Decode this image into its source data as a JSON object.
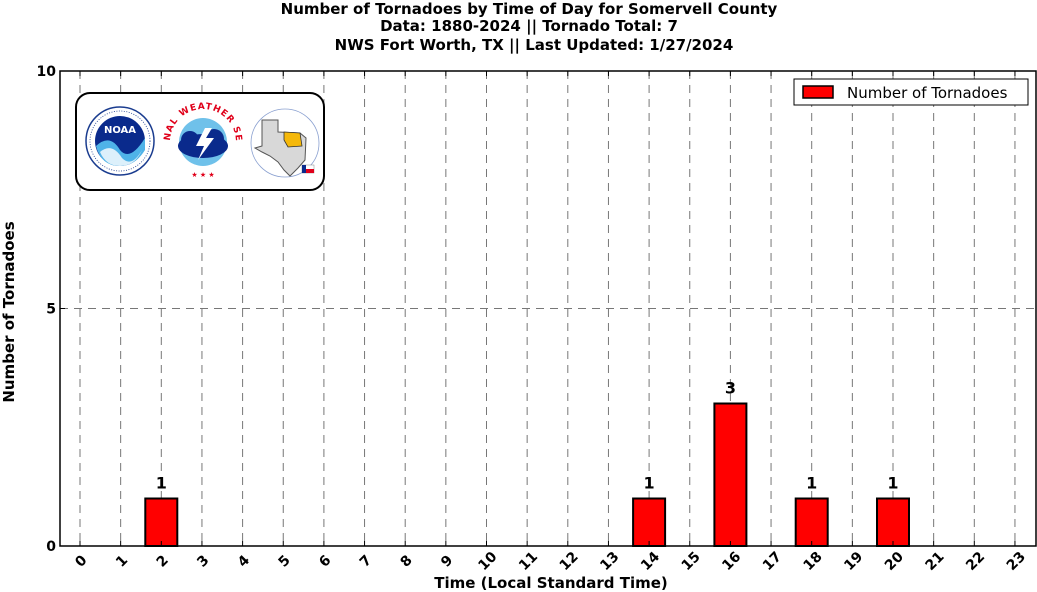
{
  "chart_data": {
    "type": "bar",
    "title": [
      "Number of Tornadoes by Time of Day for Somervell County",
      "Data: 1880-2024 || Tornado Total: 7",
      "NWS Fort Worth, TX || Last Updated: 1/27/2024"
    ],
    "xlabel": "Time (Local Standard Time)",
    "ylabel": "Number of Tornadoes",
    "categories": [
      "0",
      "1",
      "2",
      "3",
      "4",
      "5",
      "6",
      "7",
      "8",
      "9",
      "10",
      "11",
      "12",
      "13",
      "14",
      "15",
      "16",
      "17",
      "18",
      "19",
      "20",
      "21",
      "22",
      "23"
    ],
    "series": [
      {
        "name": "Number of Tornadoes",
        "color": "#ff0000",
        "values": [
          0,
          0,
          1,
          0,
          0,
          0,
          0,
          0,
          0,
          0,
          0,
          0,
          0,
          0,
          1,
          0,
          3,
          0,
          1,
          0,
          1,
          0,
          0,
          0
        ]
      }
    ],
    "ylim": [
      0,
      10
    ],
    "yticks": [
      "0",
      "5",
      "10"
    ],
    "grid": true,
    "legend": "top-right"
  },
  "logos": {
    "noaa_text": "NOAA",
    "nws_text": "NATIONAL WEATHER SERVICE"
  }
}
